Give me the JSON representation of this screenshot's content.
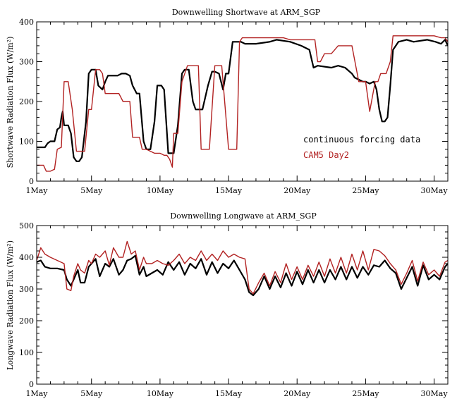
{
  "chart_data": [
    {
      "type": "line",
      "title": "Downwelling Shortwave at ARM_SGP",
      "ylabel": "Shortwave Radiation Flux (W/m²)",
      "xlabel": "",
      "xlim": [
        1,
        31
      ],
      "ylim": [
        0,
        400
      ],
      "x_ticks": [
        1,
        5,
        10,
        15,
        20,
        25,
        30
      ],
      "x_tick_labels": [
        "1May",
        "5May",
        "10May",
        "15May",
        "20May",
        "25May",
        "30May"
      ],
      "y_ticks": [
        0,
        100,
        200,
        300,
        400
      ],
      "y_tick_labels": [
        "0",
        "100",
        "200",
        "300",
        "400"
      ],
      "legend_position": "right",
      "series": [
        {
          "name": "continuous forcing data",
          "color": "#000000",
          "x": [
            1,
            1.6,
            1.8,
            2.0,
            2.3,
            2.5,
            2.7,
            2.8,
            2.9,
            3.0,
            3.3,
            3.5,
            3.7,
            3.9,
            4.1,
            4.3,
            4.6,
            4.8,
            5.0,
            5.1,
            5.3,
            5.5,
            5.8,
            6.0,
            6.2,
            6.4,
            6.6,
            6.9,
            7.2,
            7.5,
            7.8,
            8.0,
            8.3,
            8.5,
            8.8,
            9.0,
            9.3,
            9.6,
            9.8,
            10.1,
            10.3,
            10.6,
            10.8,
            11.0,
            11.3,
            11.6,
            11.8,
            12.1,
            12.4,
            12.6,
            12.9,
            13.1,
            13.5,
            13.8,
            14.0,
            14.3,
            14.6,
            14.8,
            15.0,
            15.3,
            15.6,
            15.9,
            16.2,
            16.5,
            17,
            18,
            18.5,
            19.5,
            20.3,
            20.9,
            21.2,
            21.5,
            22.5,
            23,
            23.5,
            24,
            24.2,
            24.8,
            25,
            25.3,
            25.6,
            25.8,
            26.0,
            26.2,
            26.4,
            26.6,
            26.8,
            27.0,
            27.2,
            27.4,
            28,
            28.5,
            29.5,
            30.1,
            30.5,
            30.8,
            31.0
          ],
          "y": [
            85,
            85,
            95,
            100,
            100,
            130,
            135,
            160,
            175,
            140,
            140,
            120,
            60,
            50,
            50,
            60,
            150,
            270,
            280,
            280,
            280,
            240,
            230,
            250,
            265,
            265,
            265,
            265,
            270,
            270,
            265,
            240,
            220,
            220,
            100,
            80,
            80,
            150,
            240,
            240,
            230,
            70,
            70,
            70,
            140,
            270,
            280,
            280,
            200,
            180,
            180,
            180,
            240,
            275,
            275,
            270,
            230,
            270,
            270,
            350,
            350,
            350,
            345,
            345,
            345,
            350,
            355,
            350,
            340,
            330,
            285,
            290,
            285,
            290,
            285,
            270,
            260,
            250,
            250,
            245,
            250,
            230,
            180,
            150,
            150,
            160,
            240,
            330,
            340,
            350,
            355,
            350,
            355,
            350,
            345,
            355,
            340
          ]
        },
        {
          "name": "CAM5 Day2",
          "color": "#b22222",
          "x": [
            1,
            1.5,
            1.7,
            2.0,
            2.3,
            2.5,
            2.8,
            3.0,
            3.3,
            3.6,
            3.9,
            4.2,
            4.5,
            4.8,
            5.0,
            5.3,
            5.6,
            5.8,
            6.0,
            6.3,
            6.6,
            7.0,
            7.3,
            7.8,
            8.0,
            8.3,
            8.5,
            8.7,
            9.0,
            9.3,
            9.6,
            10.0,
            10.3,
            10.5,
            10.7,
            10.9,
            11.0,
            11.3,
            11.6,
            12.0,
            12.4,
            12.8,
            13.0,
            13.3,
            13.6,
            14.0,
            14.5,
            15.0,
            15.3,
            15.6,
            15.8,
            16.0,
            16.5,
            17,
            18,
            19,
            19.5,
            20,
            20.5,
            21,
            21.3,
            21.5,
            21.7,
            22,
            22.5,
            23,
            23.5,
            24,
            24.5,
            25,
            25.3,
            25.7,
            25.9,
            26.1,
            26.3,
            26.5,
            26.8,
            27.0,
            27.5,
            28,
            29,
            30,
            30.5,
            30.8,
            31.0
          ],
          "y": [
            40,
            40,
            25,
            25,
            30,
            80,
            85,
            250,
            250,
            180,
            75,
            75,
            75,
            180,
            180,
            280,
            280,
            270,
            220,
            220,
            220,
            220,
            200,
            200,
            110,
            110,
            110,
            80,
            80,
            75,
            70,
            70,
            65,
            65,
            55,
            35,
            120,
            120,
            250,
            290,
            290,
            290,
            80,
            80,
            80,
            290,
            290,
            80,
            80,
            80,
            350,
            360,
            360,
            360,
            360,
            360,
            355,
            355,
            355,
            355,
            355,
            300,
            300,
            320,
            320,
            340,
            340,
            340,
            250,
            250,
            175,
            250,
            250,
            270,
            270,
            270,
            300,
            365,
            365,
            365,
            365,
            365,
            360,
            360,
            350
          ]
        }
      ]
    },
    {
      "type": "line",
      "title": "Downwelling Longwave at ARM_SGP",
      "ylabel": "Longwave Radiation Flux (W/m²)",
      "xlabel": "",
      "xlim": [
        1,
        31
      ],
      "ylim": [
        0,
        500
      ],
      "x_ticks": [
        1,
        5,
        10,
        15,
        20,
        25,
        30
      ],
      "x_tick_labels": [
        "1May",
        "5May",
        "10May",
        "15May",
        "20May",
        "25May",
        "30May"
      ],
      "y_ticks": [
        0,
        100,
        200,
        300,
        400,
        500
      ],
      "y_tick_labels": [
        "0",
        "100",
        "200",
        "300",
        "400",
        "500"
      ],
      "series": [
        {
          "name": "continuous forcing data",
          "color": "#000000",
          "x": [
            1,
            1.3,
            1.6,
            2,
            2.5,
            3,
            3.2,
            3.5,
            3.7,
            4,
            4.2,
            4.5,
            4.8,
            5,
            5.3,
            5.6,
            6,
            6.3,
            6.6,
            7,
            7.3,
            7.6,
            7.9,
            8.2,
            8.5,
            8.8,
            9,
            9.4,
            9.8,
            10.2,
            10.6,
            11,
            11.4,
            11.8,
            12.2,
            12.6,
            13,
            13.4,
            13.8,
            14.2,
            14.6,
            15,
            15.4,
            15.8,
            16.2,
            16.5,
            16.8,
            17.2,
            17.6,
            18,
            18.4,
            18.8,
            19.2,
            19.6,
            20,
            20.4,
            20.8,
            21.2,
            21.6,
            22,
            22.4,
            22.8,
            23.2,
            23.6,
            24,
            24.4,
            24.8,
            25.2,
            25.6,
            26,
            26.4,
            26.8,
            27.2,
            27.6,
            28,
            28.4,
            28.8,
            29.2,
            29.6,
            30,
            30.4,
            30.8,
            31.0
          ],
          "y": [
            385,
            390,
            370,
            365,
            365,
            360,
            330,
            310,
            330,
            360,
            320,
            320,
            370,
            380,
            395,
            340,
            380,
            370,
            395,
            345,
            360,
            390,
            395,
            405,
            345,
            370,
            340,
            350,
            360,
            345,
            385,
            360,
            385,
            345,
            380,
            365,
            395,
            345,
            385,
            350,
            380,
            365,
            390,
            360,
            330,
            290,
            280,
            300,
            340,
            300,
            340,
            305,
            350,
            310,
            355,
            315,
            360,
            320,
            360,
            320,
            360,
            330,
            370,
            330,
            370,
            335,
            370,
            345,
            375,
            370,
            390,
            365,
            350,
            300,
            335,
            370,
            310,
            375,
            330,
            345,
            330,
            370,
            380
          ]
        },
        {
          "name": "CAM5 Day2",
          "color": "#b22222",
          "x": [
            1,
            1.3,
            1.6,
            2,
            2.5,
            3,
            3.2,
            3.5,
            3.7,
            4,
            4.2,
            4.5,
            4.8,
            5,
            5.3,
            5.6,
            6,
            6.3,
            6.6,
            7,
            7.3,
            7.6,
            7.9,
            8.2,
            8.5,
            8.8,
            9,
            9.4,
            9.8,
            10.2,
            10.6,
            11,
            11.4,
            11.8,
            12.2,
            12.6,
            13,
            13.4,
            13.8,
            14.2,
            14.6,
            15,
            15.4,
            15.8,
            16.2,
            16.5,
            16.8,
            17.2,
            17.6,
            18,
            18.4,
            18.8,
            19.2,
            19.6,
            20,
            20.4,
            20.8,
            21.2,
            21.6,
            22,
            22.4,
            22.8,
            23.2,
            23.6,
            24,
            24.4,
            24.8,
            25.2,
            25.6,
            26,
            26.4,
            26.8,
            27.2,
            27.6,
            28,
            28.4,
            28.8,
            29.2,
            29.6,
            30,
            30.4,
            30.8,
            31.0
          ],
          "y": [
            390,
            430,
            410,
            400,
            390,
            380,
            300,
            295,
            340,
            380,
            360,
            350,
            390,
            380,
            410,
            400,
            420,
            375,
            430,
            400,
            400,
            450,
            410,
            420,
            360,
            400,
            380,
            380,
            390,
            380,
            375,
            390,
            410,
            380,
            400,
            390,
            420,
            390,
            410,
            390,
            420,
            400,
            410,
            400,
            395,
            300,
            285,
            320,
            350,
            310,
            355,
            320,
            380,
            330,
            370,
            330,
            375,
            340,
            385,
            340,
            395,
            350,
            400,
            350,
            410,
            360,
            420,
            360,
            425,
            420,
            405,
            380,
            360,
            315,
            350,
            390,
            325,
            385,
            345,
            360,
            340,
            385,
            390
          ]
        }
      ]
    }
  ]
}
